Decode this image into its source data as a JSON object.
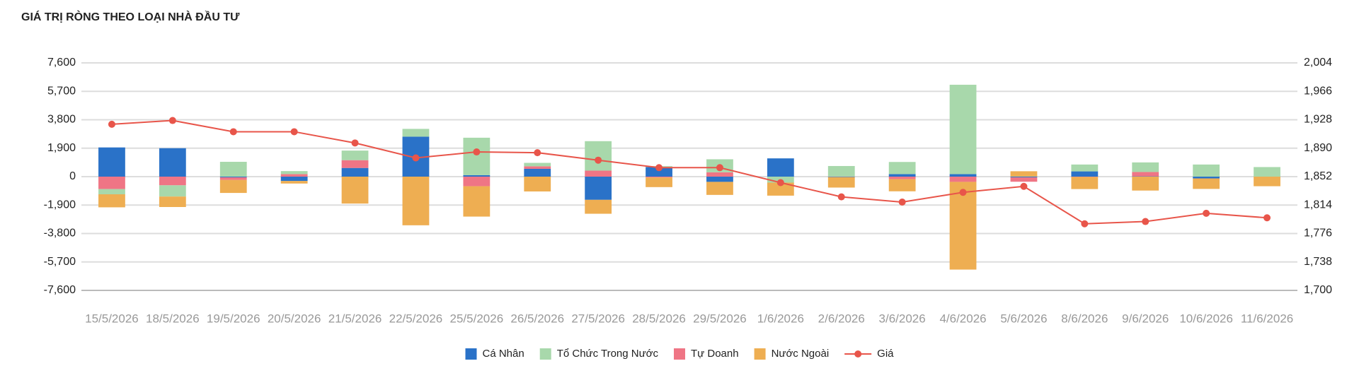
{
  "chart_data": {
    "type": "bar",
    "stacked": true,
    "title": "GIÁ TRỊ RÒNG THEO LOẠI NHÀ ĐẦU TƯ",
    "categories": [
      "15/5/2026",
      "18/5/2026",
      "19/5/2026",
      "20/5/2026",
      "21/5/2026",
      "22/5/2026",
      "25/5/2026",
      "26/5/2026",
      "27/5/2026",
      "28/5/2026",
      "29/5/2026",
      "1/6/2026",
      "2/6/2026",
      "3/6/2026",
      "4/6/2026",
      "5/6/2026",
      "8/6/2026",
      "9/6/2026",
      "10/6/2026",
      "11/6/2026"
    ],
    "series": [
      {
        "name": "Cá Nhân",
        "color": "#2a72c8",
        "stack_order": 0,
        "values": [
          1950,
          1900,
          -50,
          -290,
          580,
          2670,
          100,
          520,
          -1550,
          640,
          -350,
          1220,
          -30,
          170,
          170,
          -50,
          350,
          20,
          -120,
          0
        ]
      },
      {
        "name": "Tổ Chức Trong Nước",
        "color": "#a8d8ab",
        "stack_order": 2,
        "values": [
          -350,
          -750,
          990,
          200,
          640,
          520,
          2500,
          230,
          1970,
          60,
          870,
          -400,
          700,
          810,
          5970,
          10,
          460,
          640,
          810,
          640
        ]
      },
      {
        "name": "Tự Doanh",
        "color": "#ef7585",
        "stack_order": 1,
        "values": [
          -830,
          -580,
          -170,
          170,
          520,
          0,
          -640,
          170,
          400,
          -60,
          290,
          0,
          10,
          -170,
          -350,
          -290,
          -20,
          290,
          0,
          0
        ]
      },
      {
        "name": "Nước Ngoài",
        "color": "#eeae52",
        "stack_order": 3,
        "values": [
          -870,
          -700,
          -870,
          -170,
          -1800,
          -3250,
          -2030,
          -990,
          -930,
          -640,
          -870,
          -870,
          -700,
          -810,
          -5860,
          350,
          -810,
          -930,
          -700,
          -640
        ]
      },
      {
        "name": "Giá",
        "color": "#e8554a",
        "type": "line",
        "axis": "y2",
        "values": [
          1922,
          1927,
          1912,
          1912,
          1897,
          1877,
          1885,
          1884,
          1874,
          1864,
          1864,
          1844,
          1825,
          1818,
          1831,
          1839,
          1789,
          1792,
          1803,
          1797
        ]
      }
    ],
    "ylim": [
      -7600,
      7600
    ],
    "yticks": [
      {
        "value": -7600,
        "label": "-7,600"
      },
      {
        "value": -5700,
        "label": "-5,700"
      },
      {
        "value": -3800,
        "label": "-3,800"
      },
      {
        "value": -1900,
        "label": "-1,900"
      },
      0,
      {
        "value": 1900,
        "label": "1,900"
      },
      {
        "value": 3800,
        "label": "3,800"
      },
      {
        "value": 5700,
        "label": "5,700"
      },
      {
        "value": 7600,
        "label": "7,600"
      }
    ],
    "y2lim": [
      1700,
      2004
    ],
    "y2ticks": [
      {
        "value": 1700,
        "label": "1,700"
      },
      {
        "value": 1738,
        "label": "1,738"
      },
      {
        "value": 1776,
        "label": "1,776"
      },
      {
        "value": 1814,
        "label": "1,814"
      },
      {
        "value": 1852,
        "label": "1,852"
      },
      {
        "value": 1890,
        "label": "1,890"
      },
      {
        "value": 1928,
        "label": "1,928"
      },
      {
        "value": 1966,
        "label": "1,966"
      },
      {
        "value": 2004,
        "label": "2,004"
      }
    ],
    "grid": true,
    "legend": "bottom"
  }
}
